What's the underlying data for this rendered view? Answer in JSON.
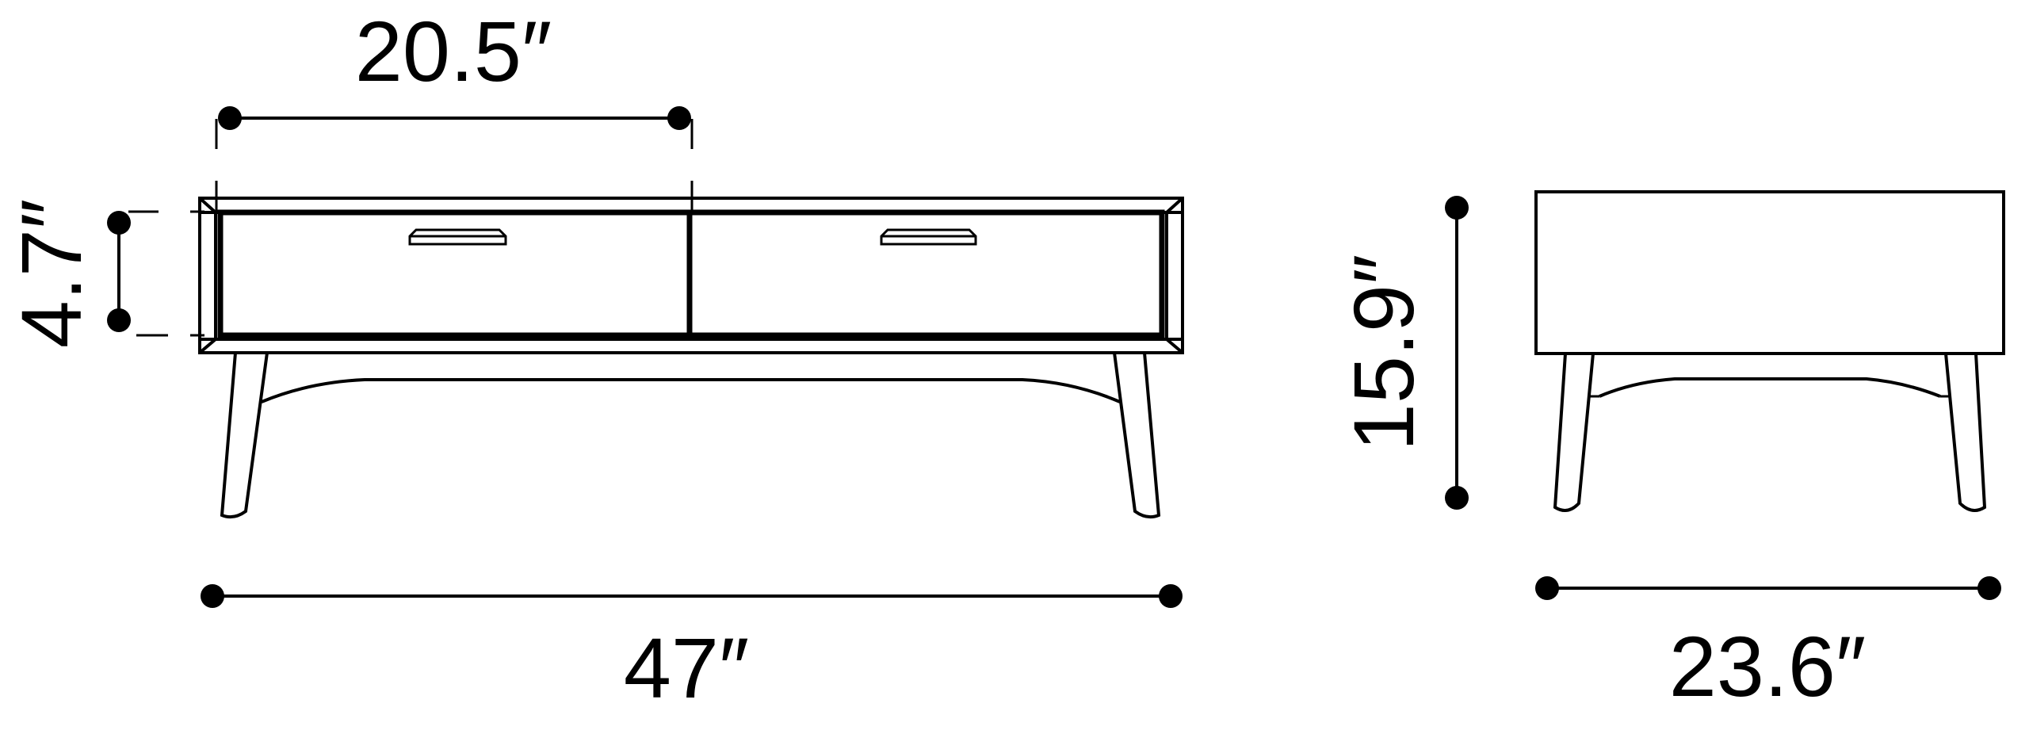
{
  "colors": {
    "line": "#000000",
    "background": "#ffffff"
  },
  "dimensions": {
    "drawer_width": "20.5″",
    "drawer_height": "4.7″",
    "overall_width": "47″",
    "overall_height": "15.9″",
    "overall_depth": "23.6″"
  }
}
